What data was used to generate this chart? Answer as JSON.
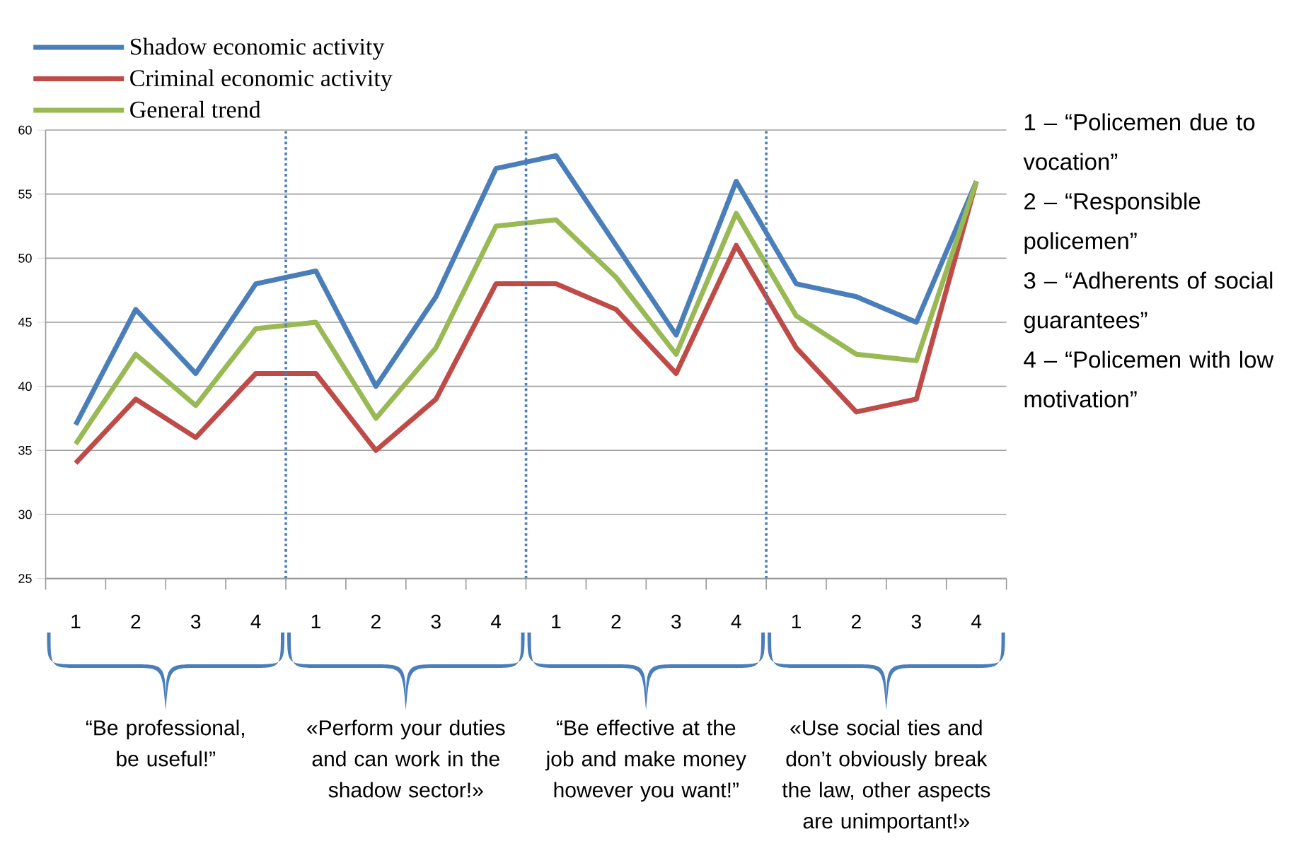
{
  "chart_data": {
    "type": "line",
    "categories": [
      "1",
      "2",
      "3",
      "4",
      "1",
      "2",
      "3",
      "4",
      "1",
      "2",
      "3",
      "4",
      "1",
      "2",
      "3",
      "4"
    ],
    "series": [
      {
        "name": "Shadow economic activity",
        "color": "#4a7ebb",
        "values": [
          37,
          46,
          41,
          48,
          49,
          40,
          47,
          57,
          58,
          51,
          44,
          56,
          48,
          47,
          45,
          56
        ]
      },
      {
        "name": "Criminal economic activity",
        "color": "#be4b48",
        "values": [
          34,
          39,
          36,
          41,
          41,
          35,
          39,
          48,
          48,
          46,
          41,
          51,
          43,
          38,
          39,
          56
        ]
      },
      {
        "name": "General trend",
        "color": "#98b954",
        "values": [
          35.5,
          42.5,
          38.5,
          44.5,
          45,
          37.5,
          43,
          52.5,
          53,
          48.5,
          42.5,
          53.5,
          45.5,
          42.5,
          42,
          56
        ]
      }
    ],
    "ylim": [
      25,
      60
    ],
    "yticks": [
      25,
      30,
      35,
      40,
      45,
      50,
      55,
      60
    ],
    "grid": "y",
    "legend": "top left",
    "line_style": "solid",
    "annotations": [
      "“Be professional, be useful!”",
      "«Perform your duties and can work in the shadow sector!»",
      "“Be effective at the job and make money however you want!”",
      "«Use social ties and don’t obviously break the law, other aspects are unimportant!»",
      "1 – “Policemen due to vocation”",
      "2 – “Responsible policemen”",
      "3 – “Adherents of social guarantees”",
      "4 – “Policemen with low motivation”"
    ]
  }
}
